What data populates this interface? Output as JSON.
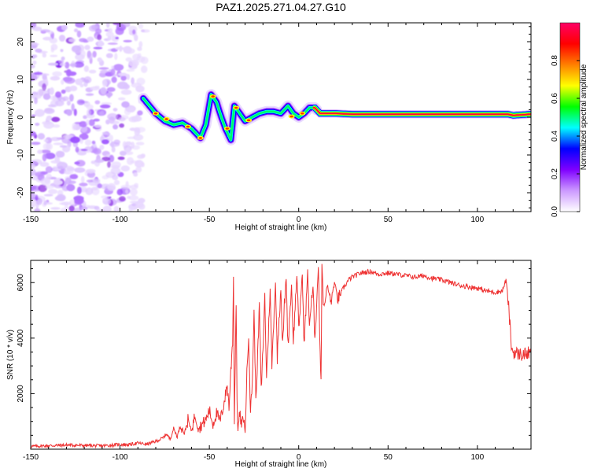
{
  "title": "PAZ1.2025.271.04.27.G10",
  "chart_data": [
    {
      "id": "spectrogram",
      "type": "heatmap",
      "xlabel": "Height of straight line (km)",
      "ylabel": "Frequency (Hz)",
      "xlim": [
        -150,
        130
      ],
      "ylim": [
        -25,
        25
      ],
      "xticks": [
        -150,
        -100,
        -50,
        0,
        50,
        100
      ],
      "xtick_labels": [
        "-150",
        "-100",
        "-50",
        "0",
        "50",
        "100"
      ],
      "yticks": [
        -20,
        -10,
        0,
        10,
        20
      ],
      "ytick_labels": [
        "-20",
        "-10",
        "0",
        "10",
        "20"
      ],
      "noise_region_x": [
        -150,
        -87
      ],
      "ridge": {
        "x": [
          -87,
          -80,
          -75,
          -70,
          -65,
          -60,
          -55,
          -52,
          -49,
          -46,
          -44,
          -41,
          -38,
          -36,
          -33,
          -30,
          -26,
          -22,
          -18,
          -14,
          -10,
          -6,
          -3,
          0,
          3,
          6,
          9,
          12,
          16,
          20,
          30,
          50,
          70,
          90,
          100,
          110,
          117,
          120,
          130
        ],
        "y": [
          5,
          1,
          -1,
          -2,
          -1.5,
          -3,
          -5.5,
          -2,
          6,
          4,
          1,
          -3,
          -6,
          3,
          1,
          -1,
          0,
          1,
          1.5,
          1.5,
          1,
          3,
          1,
          0,
          1,
          2.5,
          2.5,
          1,
          1,
          1,
          0.8,
          0.8,
          0.8,
          0.8,
          0.8,
          0.8,
          0.8,
          0.5,
          0.8
        ]
      },
      "colorbar": {
        "label": "Normalized spectral amplitude",
        "ticks": [
          0.0,
          0.2,
          0.4,
          0.6,
          0.8
        ],
        "tick_labels": [
          "0.0",
          "0.2",
          "0.4",
          "0.6",
          "0.8"
        ],
        "colors": [
          "#ffffff",
          "#cc99ff",
          "#7f00ff",
          "#0000ff",
          "#00ffff",
          "#00ff00",
          "#ffff00",
          "#ff8000",
          "#ff0000",
          "#ff0066"
        ]
      }
    },
    {
      "id": "snr",
      "type": "line",
      "xlabel": "Height of straight line (km)",
      "ylabel": "SNR (10 * v/v)",
      "xlim": [
        -150,
        130
      ],
      "ylim": [
        0,
        6800
      ],
      "xticks": [
        -150,
        -100,
        -50,
        0,
        50,
        100
      ],
      "xtick_labels": [
        "-150",
        "-100",
        "-50",
        "0",
        "50",
        "100"
      ],
      "yticks": [
        2000,
        4000,
        6000
      ],
      "ytick_labels": [
        "2000",
        "4000",
        "6000"
      ],
      "line_color": "#ee3333",
      "series": [
        {
          "name": "SNR",
          "x": [
            -150,
            -130,
            -110,
            -100,
            -95,
            -90,
            -85,
            -80,
            -76,
            -74,
            -72,
            -70,
            -68,
            -66,
            -64,
            -62,
            -60,
            -58,
            -56,
            -54,
            -52,
            -50,
            -48,
            -46,
            -44,
            -42,
            -40,
            -39,
            -38,
            -37,
            -36.5,
            -36,
            -35.5,
            -35,
            -34.5,
            -34,
            -33,
            -32,
            -31,
            -30,
            -29,
            -28,
            -27,
            -26,
            -25,
            -24,
            -23,
            -22,
            -21,
            -20,
            -19,
            -18,
            -17,
            -16,
            -15,
            -14,
            -13,
            -12,
            -11,
            -10,
            -9,
            -8,
            -7,
            -6,
            -5,
            -4,
            -3,
            -2,
            -1,
            0,
            1,
            2,
            3,
            4,
            5,
            6,
            7,
            8,
            9,
            10,
            11,
            12,
            12.5,
            13,
            14,
            15,
            16,
            17,
            18,
            20,
            22,
            25,
            28,
            30,
            35,
            40,
            45,
            50,
            55,
            60,
            65,
            70,
            75,
            80,
            85,
            90,
            95,
            100,
            105,
            110,
            114,
            116,
            117,
            118,
            119,
            120,
            122,
            125,
            128,
            130
          ],
          "y": [
            100,
            150,
            120,
            170,
            160,
            220,
            180,
            280,
            400,
            560,
            350,
            750,
            450,
            900,
            550,
            1050,
            650,
            1250,
            750,
            900,
            1050,
            1400,
            900,
            1300,
            1000,
            1600,
            2300,
            1500,
            2800,
            3900,
            6200,
            900,
            3300,
            5300,
            1600,
            700,
            1300,
            800,
            1200,
            600,
            2700,
            4200,
            1300,
            2400,
            4900,
            1800,
            3300,
            5200,
            2100,
            3600,
            5500,
            2600,
            4100,
            5800,
            3000,
            4600,
            6000,
            3300,
            4700,
            5800,
            3700,
            5200,
            6200,
            3700,
            4900,
            5900,
            3900,
            5100,
            6300,
            4300,
            5300,
            6300,
            3700,
            5000,
            6400,
            4500,
            5200,
            5800,
            4000,
            5200,
            6600,
            3500,
            2500,
            6700,
            5000,
            5500,
            5900,
            5600,
            5300,
            6000,
            5400,
            5800,
            6100,
            6200,
            6350,
            6400,
            6300,
            6350,
            6300,
            6250,
            6200,
            6250,
            6150,
            6100,
            6000,
            5900,
            5850,
            5800,
            5700,
            5650,
            5700,
            6100,
            5500,
            4700,
            3700,
            3500,
            3450,
            3400,
            3450,
            3450
          ]
        }
      ]
    }
  ]
}
